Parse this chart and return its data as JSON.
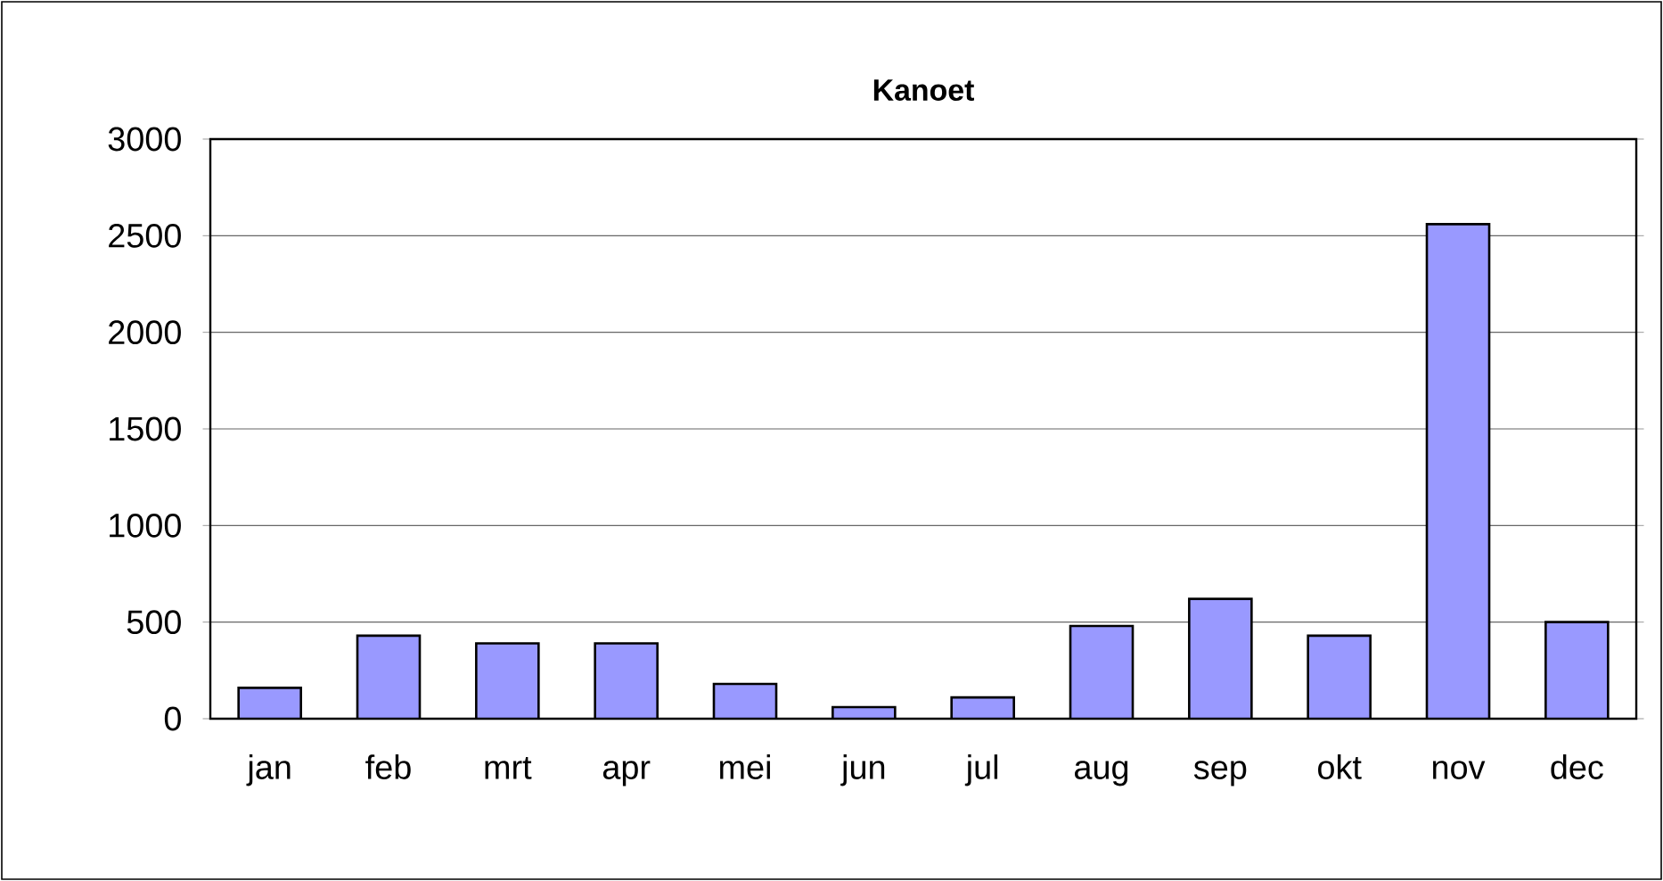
{
  "chart_data": {
    "type": "bar",
    "title": "Kanoet",
    "categories": [
      "jan",
      "feb",
      "mrt",
      "apr",
      "mei",
      "jun",
      "jul",
      "aug",
      "sep",
      "okt",
      "nov",
      "dec"
    ],
    "values": [
      160,
      430,
      390,
      390,
      180,
      60,
      110,
      480,
      620,
      430,
      2560,
      500
    ],
    "color": "#9999ff",
    "ylim": [
      0,
      3000
    ],
    "yticks": [
      0,
      500,
      1000,
      1500,
      2000,
      2500,
      3000
    ],
    "grid": "y"
  }
}
